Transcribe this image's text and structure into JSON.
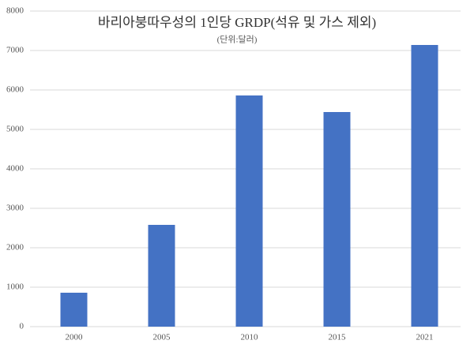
{
  "chart_data": {
    "type": "bar",
    "title": "바리아붕따우성의 1인당 GRDP(석유 및 가스 제외)",
    "subtitle": "(단위:달러)",
    "categories": [
      "2000",
      "2005",
      "2010",
      "2015",
      "2021"
    ],
    "values": [
      860,
      2580,
      5860,
      5440,
      7140
    ],
    "color": "#4472c4",
    "ylim": [
      0,
      8000
    ],
    "yticks": [
      0,
      1000,
      2000,
      3000,
      4000,
      5000,
      6000,
      7000,
      8000
    ],
    "grid": true
  }
}
